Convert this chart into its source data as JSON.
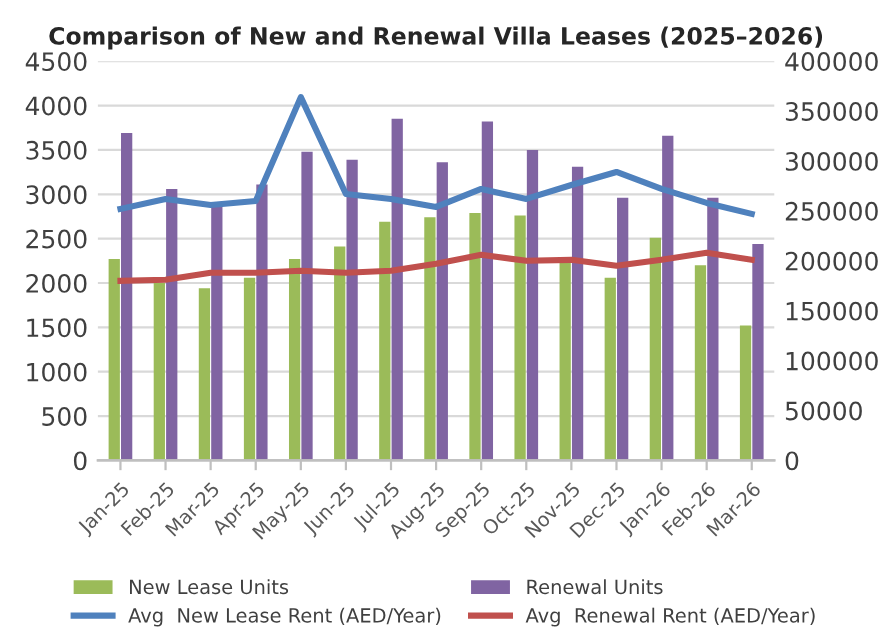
{
  "chart_data": {
    "type": "bar",
    "title": "Comparison of New and Renewal Villa Leases (2025–2026)",
    "categories": [
      "Jan-25",
      "Feb-25",
      "Mar-25",
      "Apr-25",
      "May-25",
      "Jun-25",
      "Jul-25",
      "Aug-25",
      "Sep-25",
      "Oct-25",
      "Nov-25",
      "Dec-25",
      "Jan-26",
      "Feb-26",
      "Mar-26"
    ],
    "series": [
      {
        "name": "New Lease Units",
        "color": "#9bbb59",
        "values": [
          2270,
          2000,
          1940,
          2060,
          2270,
          2410,
          2690,
          2740,
          2790,
          2760,
          2260,
          2060,
          2510,
          2200,
          1520
        ]
      },
      {
        "name": "Renewal Units",
        "color": "#8064a2",
        "values": [
          3690,
          3060,
          2880,
          3110,
          3480,
          3390,
          3850,
          3360,
          3820,
          3500,
          3310,
          2960,
          3660,
          2960,
          2440
        ]
      },
      {
        "name": "Avg  New Lease Rent (AED/Year)",
        "type": "line",
        "axis": "y2",
        "color": "#4f81bd",
        "values": [
          252000,
          262000,
          256000,
          260000,
          364000,
          267000,
          262000,
          254000,
          272000,
          262000,
          276000,
          289000,
          272000,
          258000,
          247000
        ]
      },
      {
        "name": "Avg  Renewal Rent (AED/Year)",
        "type": "line",
        "axis": "y2",
        "color": "#c0504d",
        "values": [
          180000,
          181000,
          188000,
          188000,
          190000,
          188000,
          190000,
          197000,
          206000,
          200000,
          201000,
          195000,
          201000,
          208000,
          201000
        ]
      }
    ],
    "ylim": [
      0,
      4500
    ],
    "yticks": [
      0,
      500,
      1000,
      1500,
      2000,
      2500,
      3000,
      3500,
      4000,
      4500
    ],
    "y2lim": [
      0,
      400000
    ],
    "y2ticks": [
      0,
      50000,
      100000,
      150000,
      200000,
      250000,
      300000,
      350000,
      400000
    ],
    "grid": "y",
    "legend": "bottom",
    "marker": "none",
    "line_style": "solid"
  }
}
